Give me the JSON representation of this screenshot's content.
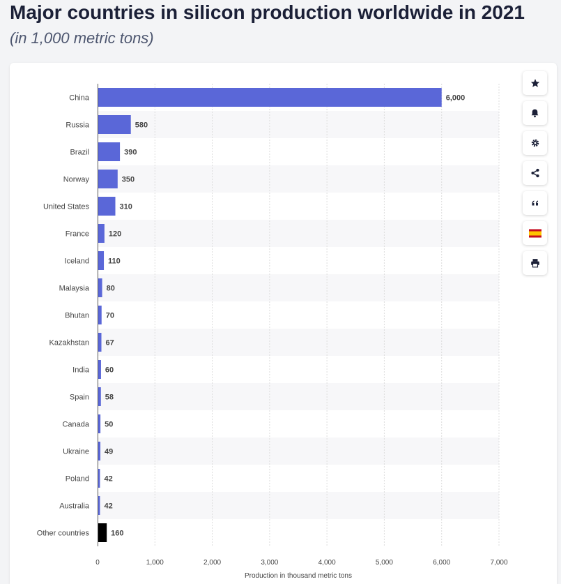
{
  "header": {
    "title": "Major countries in silicon production worldwide in 2021",
    "subtitle": "(in 1,000 metric tons)"
  },
  "toolbar": [
    {
      "name": "favorite-button",
      "icon": "star-icon"
    },
    {
      "name": "notification-button",
      "icon": "bell-icon"
    },
    {
      "name": "settings-button",
      "icon": "gear-icon"
    },
    {
      "name": "share-button",
      "icon": "share-icon"
    },
    {
      "name": "cite-button",
      "icon": "quote-icon"
    },
    {
      "name": "language-button",
      "icon": "spain-flag-icon"
    },
    {
      "name": "print-button",
      "icon": "printer-icon"
    }
  ],
  "colors": {
    "bar": "#5a67d8",
    "highlight_bar": "#000000",
    "band": "#f7f7f9",
    "text": "#444444",
    "grid": "#dddddd"
  },
  "chart_data": {
    "type": "bar",
    "orientation": "horizontal",
    "categories": [
      "China",
      "Russia",
      "Brazil",
      "Norway",
      "United States",
      "France",
      "Iceland",
      "Malaysia",
      "Bhutan",
      "Kazakhstan",
      "India",
      "Spain",
      "Canada",
      "Ukraine",
      "Poland",
      "Australia",
      "Other countries"
    ],
    "values": [
      6000,
      580,
      390,
      350,
      310,
      120,
      110,
      80,
      70,
      67,
      60,
      58,
      50,
      49,
      42,
      42,
      160
    ],
    "value_labels": [
      "6,000",
      "580",
      "390",
      "350",
      "310",
      "120",
      "110",
      "80",
      "70",
      "67",
      "60",
      "58",
      "50",
      "49",
      "42",
      "42",
      "160"
    ],
    "highlight_categories": [
      "Other countries"
    ],
    "xlabel": "Production in thousand metric tons",
    "ylabel": "",
    "xlim": [
      0,
      7000
    ],
    "xticks": [
      0,
      1000,
      2000,
      3000,
      4000,
      5000,
      6000,
      7000
    ],
    "xtick_labels": [
      "0",
      "1,000",
      "2,000",
      "3,000",
      "4,000",
      "5,000",
      "6,000",
      "7,000"
    ],
    "grid": true
  }
}
